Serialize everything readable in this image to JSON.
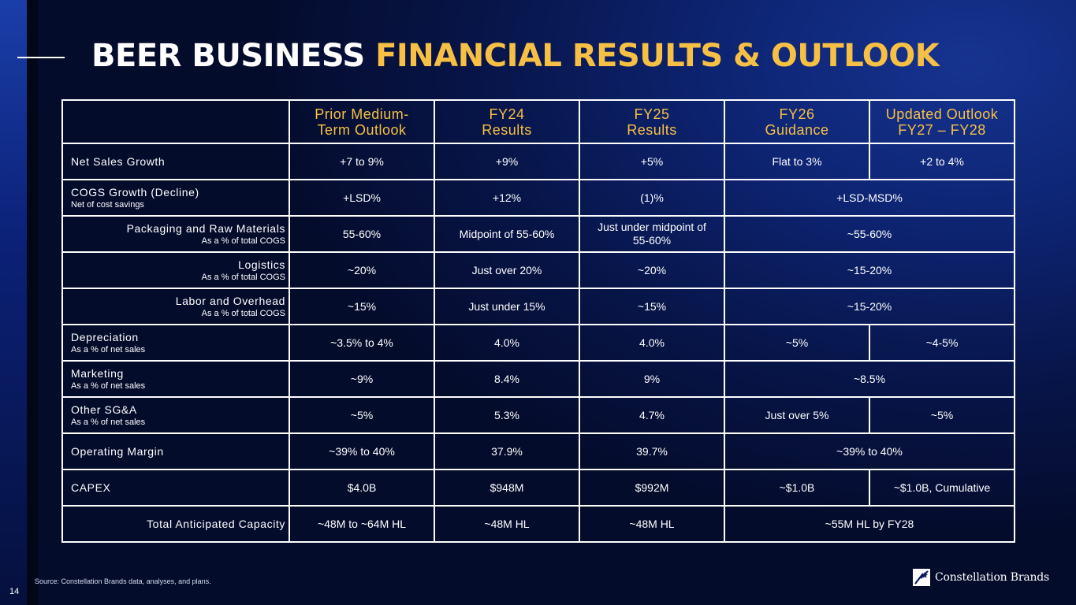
{
  "slide": {
    "title_white": "BEER BUSINESS",
    "title_gold": "FINANCIAL RESULTS & OUTLOOK",
    "source": "Source:  Constellation Brands data, analyses, and plans.",
    "page_number": "14",
    "logo_text": "Constellation Brands",
    "colors": {
      "accent_gold": "#f7c044",
      "background": "#0d2472",
      "text": "#ffffff"
    }
  },
  "table": {
    "headers": [
      "",
      "Prior Medium-\nTerm Outlook",
      "FY24\nResults",
      "FY25\nResults",
      "FY26\nGuidance",
      "Updated Outlook\nFY27 – FY28"
    ],
    "rows": [
      {
        "label": "Net Sales Growth",
        "note": "",
        "c1": "+7 to 9%",
        "c2": "+9%",
        "c3": "+5%",
        "c4": "Flat to 3%",
        "c5": "+2 to 4%"
      },
      {
        "label": "COGS Growth (Decline)",
        "note": "Net of cost savings",
        "c1": "+LSD%",
        "c2": "+12%",
        "c3": "(1)%",
        "c45": "+LSD-MSD%"
      },
      {
        "label": "Packaging and Raw Materials",
        "note": "As a % of total COGS",
        "c1": "55-60%",
        "c2": "Midpoint of 55-60%",
        "c3": "Just under midpoint of 55-60%",
        "c45": "~55-60%"
      },
      {
        "label": "Logistics",
        "note": "As a % of total COGS",
        "c1": "~20%",
        "c2": "Just over 20%",
        "c3": "~20%",
        "c45": "~15-20%"
      },
      {
        "label": "Labor and Overhead",
        "note": "As a % of total COGS",
        "c1": "~15%",
        "c2": "Just under 15%",
        "c3": "~15%",
        "c45": "~15-20%"
      },
      {
        "label": "Depreciation",
        "note": "As a % of net sales",
        "c1": "~3.5% to 4%",
        "c2": "4.0%",
        "c3": "4.0%",
        "c4": "~5%",
        "c5": "~4-5%"
      },
      {
        "label": "Marketing",
        "note": "As a % of net sales",
        "c1": "~9%",
        "c2": "8.4%",
        "c3": "9%",
        "c45": "~8.5%"
      },
      {
        "label": "Other SG&A",
        "note": "As a % of net sales",
        "c1": "~5%",
        "c2": "5.3%",
        "c3": "4.7%",
        "c4": "Just over 5%",
        "c5": "~5%"
      },
      {
        "label": "Operating Margin",
        "note": "",
        "c1": "~39% to 40%",
        "c2": "37.9%",
        "c3": "39.7%",
        "c45": "~39% to 40%"
      },
      {
        "label": "CAPEX",
        "note": "",
        "c1": "$4.0B",
        "c2": "$948M",
        "c3": "$992M",
        "c4": "~$1.0B",
        "c5": "~$1.0B, Cumulative"
      },
      {
        "label": "Total Anticipated Capacity",
        "note": "",
        "c1": "~48M to ~64M HL",
        "c2": "~48M HL",
        "c3": "~48M HL",
        "c45": "~55M HL by FY28"
      }
    ]
  }
}
